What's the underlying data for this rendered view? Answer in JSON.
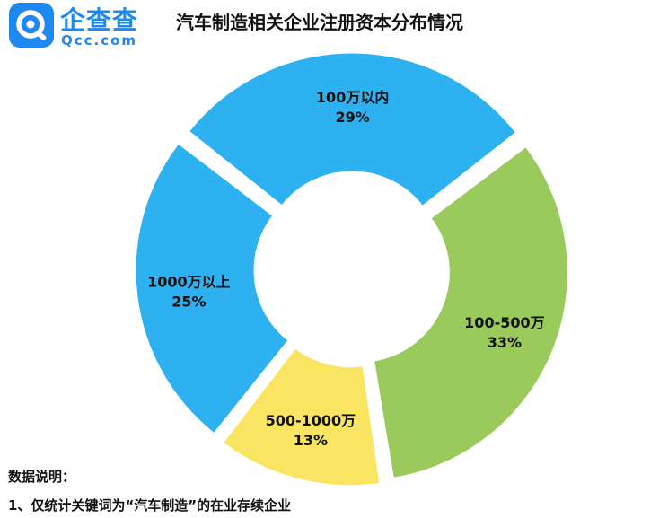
{
  "brand": {
    "name": "企查查",
    "domain": "Qcc.com",
    "color": "#1E89F0"
  },
  "chart_data": {
    "type": "pie",
    "title": "汽车制造相关企业注册资本分布情况",
    "style": "donut, exploded slices",
    "slices": [
      {
        "label": "100万以内",
        "value": 29,
        "value_label": "29%",
        "color": "#2DB1F1"
      },
      {
        "label": "100-500万",
        "value": 33,
        "value_label": "33%",
        "color": "#9AC95C"
      },
      {
        "label": "500-1000万",
        "value": 13,
        "value_label": "13%",
        "color": "#F9E561"
      },
      {
        "label": "1000万以上",
        "value": 25,
        "value_label": "25%",
        "color": "#2DB1F1"
      }
    ]
  },
  "notes": {
    "heading": "数据说明：",
    "items": [
      "1、仅统计关键词为“汽车制造”的在业存续企业"
    ]
  }
}
